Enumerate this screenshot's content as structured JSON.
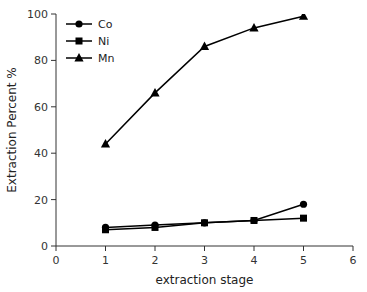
{
  "chart_data": {
    "type": "line",
    "xlabel": "extraction stage",
    "ylabel": "Extraction Percent %",
    "x": [
      1,
      2,
      3,
      4,
      5
    ],
    "series": [
      {
        "name": "Co",
        "color": "#000000",
        "marker": "circle",
        "values": [
          8,
          9,
          10,
          11,
          18
        ]
      },
      {
        "name": "Ni",
        "color": "#000000",
        "marker": "square",
        "values": [
          7,
          8,
          10,
          11,
          12
        ]
      },
      {
        "name": "Mn",
        "color": "#000000",
        "marker": "triangle",
        "values": [
          44,
          66,
          86,
          94,
          99
        ]
      }
    ],
    "xlim": [
      0,
      6
    ],
    "ylim": [
      0,
      100
    ],
    "xticks": [
      0,
      1,
      2,
      3,
      4,
      5,
      6
    ],
    "yticks": [
      0,
      20,
      40,
      60,
      80,
      100
    ],
    "grid": false,
    "legend": "upper left"
  }
}
